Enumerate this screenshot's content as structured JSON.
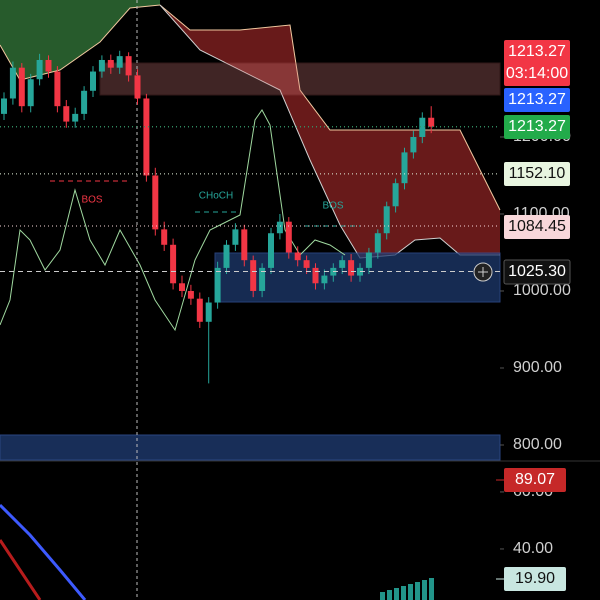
{
  "chart_data": {
    "type": "candlestick",
    "up_color": "#26a69a",
    "down_color": "#f23645",
    "open": [
      1230,
      1250,
      1290,
      1240,
      1275,
      1300,
      1285,
      1240,
      1220,
      1230,
      1260,
      1285,
      1300,
      1290,
      1305,
      1280,
      1250,
      1150,
      1080,
      1060,
      1010,
      1000,
      990,
      960,
      985,
      1030,
      1060,
      1080,
      1040,
      1000,
      1030,
      1075,
      1090,
      1050,
      1040,
      1030,
      1010,
      1020,
      1030,
      1040,
      1020,
      1030,
      1050,
      1075,
      1110,
      1140,
      1180,
      1200,
      1225
    ],
    "high": [
      1258,
      1298,
      1296,
      1282,
      1308,
      1306,
      1292,
      1248,
      1238,
      1266,
      1292,
      1306,
      1307,
      1312,
      1310,
      1288,
      1256,
      1160,
      1090,
      1068,
      1020,
      1008,
      998,
      992,
      1038,
      1066,
      1088,
      1086,
      1046,
      1036,
      1082,
      1100,
      1096,
      1058,
      1046,
      1036,
      1028,
      1036,
      1046,
      1048,
      1036,
      1056,
      1080,
      1116,
      1146,
      1186,
      1208,
      1232,
      1240
    ],
    "low": [
      1222,
      1242,
      1232,
      1232,
      1267,
      1277,
      1232,
      1212,
      1212,
      1222,
      1252,
      1277,
      1282,
      1282,
      1272,
      1242,
      1142,
      1072,
      1052,
      1002,
      992,
      982,
      952,
      880,
      977,
      1022,
      1052,
      1032,
      992,
      992,
      1022,
      1067,
      1042,
      1032,
      1022,
      1002,
      1002,
      1012,
      1022,
      1012,
      1012,
      1022,
      1042,
      1067,
      1102,
      1132,
      1172,
      1192,
      1205
    ],
    "close": [
      1250,
      1290,
      1240,
      1275,
      1300,
      1285,
      1240,
      1220,
      1230,
      1260,
      1285,
      1300,
      1290,
      1305,
      1280,
      1250,
      1150,
      1080,
      1060,
      1010,
      1000,
      990,
      960,
      985,
      1030,
      1060,
      1080,
      1040,
      1000,
      1030,
      1075,
      1090,
      1050,
      1040,
      1030,
      1010,
      1020,
      1030,
      1040,
      1020,
      1030,
      1050,
      1075,
      1110,
      1140,
      1180,
      1200,
      1225,
      1213.27
    ],
    "ylim": [
      780.5,
      1377.9
    ],
    "yticks": [
      {
        "value": 800,
        "label": "800.00"
      },
      {
        "value": 900,
        "label": "900.00"
      },
      {
        "value": 1000,
        "label": "1000.00"
      },
      {
        "value": 1100,
        "label": "1100.00"
      },
      {
        "value": 1200,
        "label": "1200.00"
      }
    ],
    "annotations": [
      {
        "text": "BOS",
        "color": "#f23645"
      },
      {
        "text": "CHoCH",
        "color": "#26a69a"
      },
      {
        "text": "BOS",
        "color": "#26a69a"
      }
    ],
    "price_tags": [
      {
        "value": 1213.27,
        "label": "1213.27",
        "time": "03:14:00",
        "color": "#f23645",
        "text_color": "#ffffff"
      },
      {
        "value": 1213.27,
        "label": "1213.27",
        "color": "#2962ff",
        "text_color": "#ffffff"
      },
      {
        "value": 1213.27,
        "label": "1213.27",
        "color": "#22ab4a",
        "text_color": "#ffffff"
      },
      {
        "value": 1152.1,
        "label": "1152.10",
        "color": "#e8f5e0",
        "text_color": "#111111"
      },
      {
        "value": 1084.45,
        "label": "1084.45",
        "color": "#f8d7da",
        "text_color": "#111111"
      },
      {
        "value": 1025.3,
        "label": "1025.30",
        "color": "#111111",
        "text_color": "#ffffff"
      }
    ],
    "lower_pane": {
      "ylim": [
        22.1,
        70.5
      ],
      "yticks": [
        {
          "value": 40,
          "label": "40.00"
        },
        {
          "value": 60,
          "label": "60.00"
        }
      ],
      "tags": [
        {
          "value": 89.07,
          "label": "89.07",
          "color": "#c62828",
          "text_color": "#ffffff"
        },
        {
          "value": 19.9,
          "label": "19.90",
          "color": "#c8e6e0",
          "text_color": "#111111"
        }
      ]
    }
  }
}
